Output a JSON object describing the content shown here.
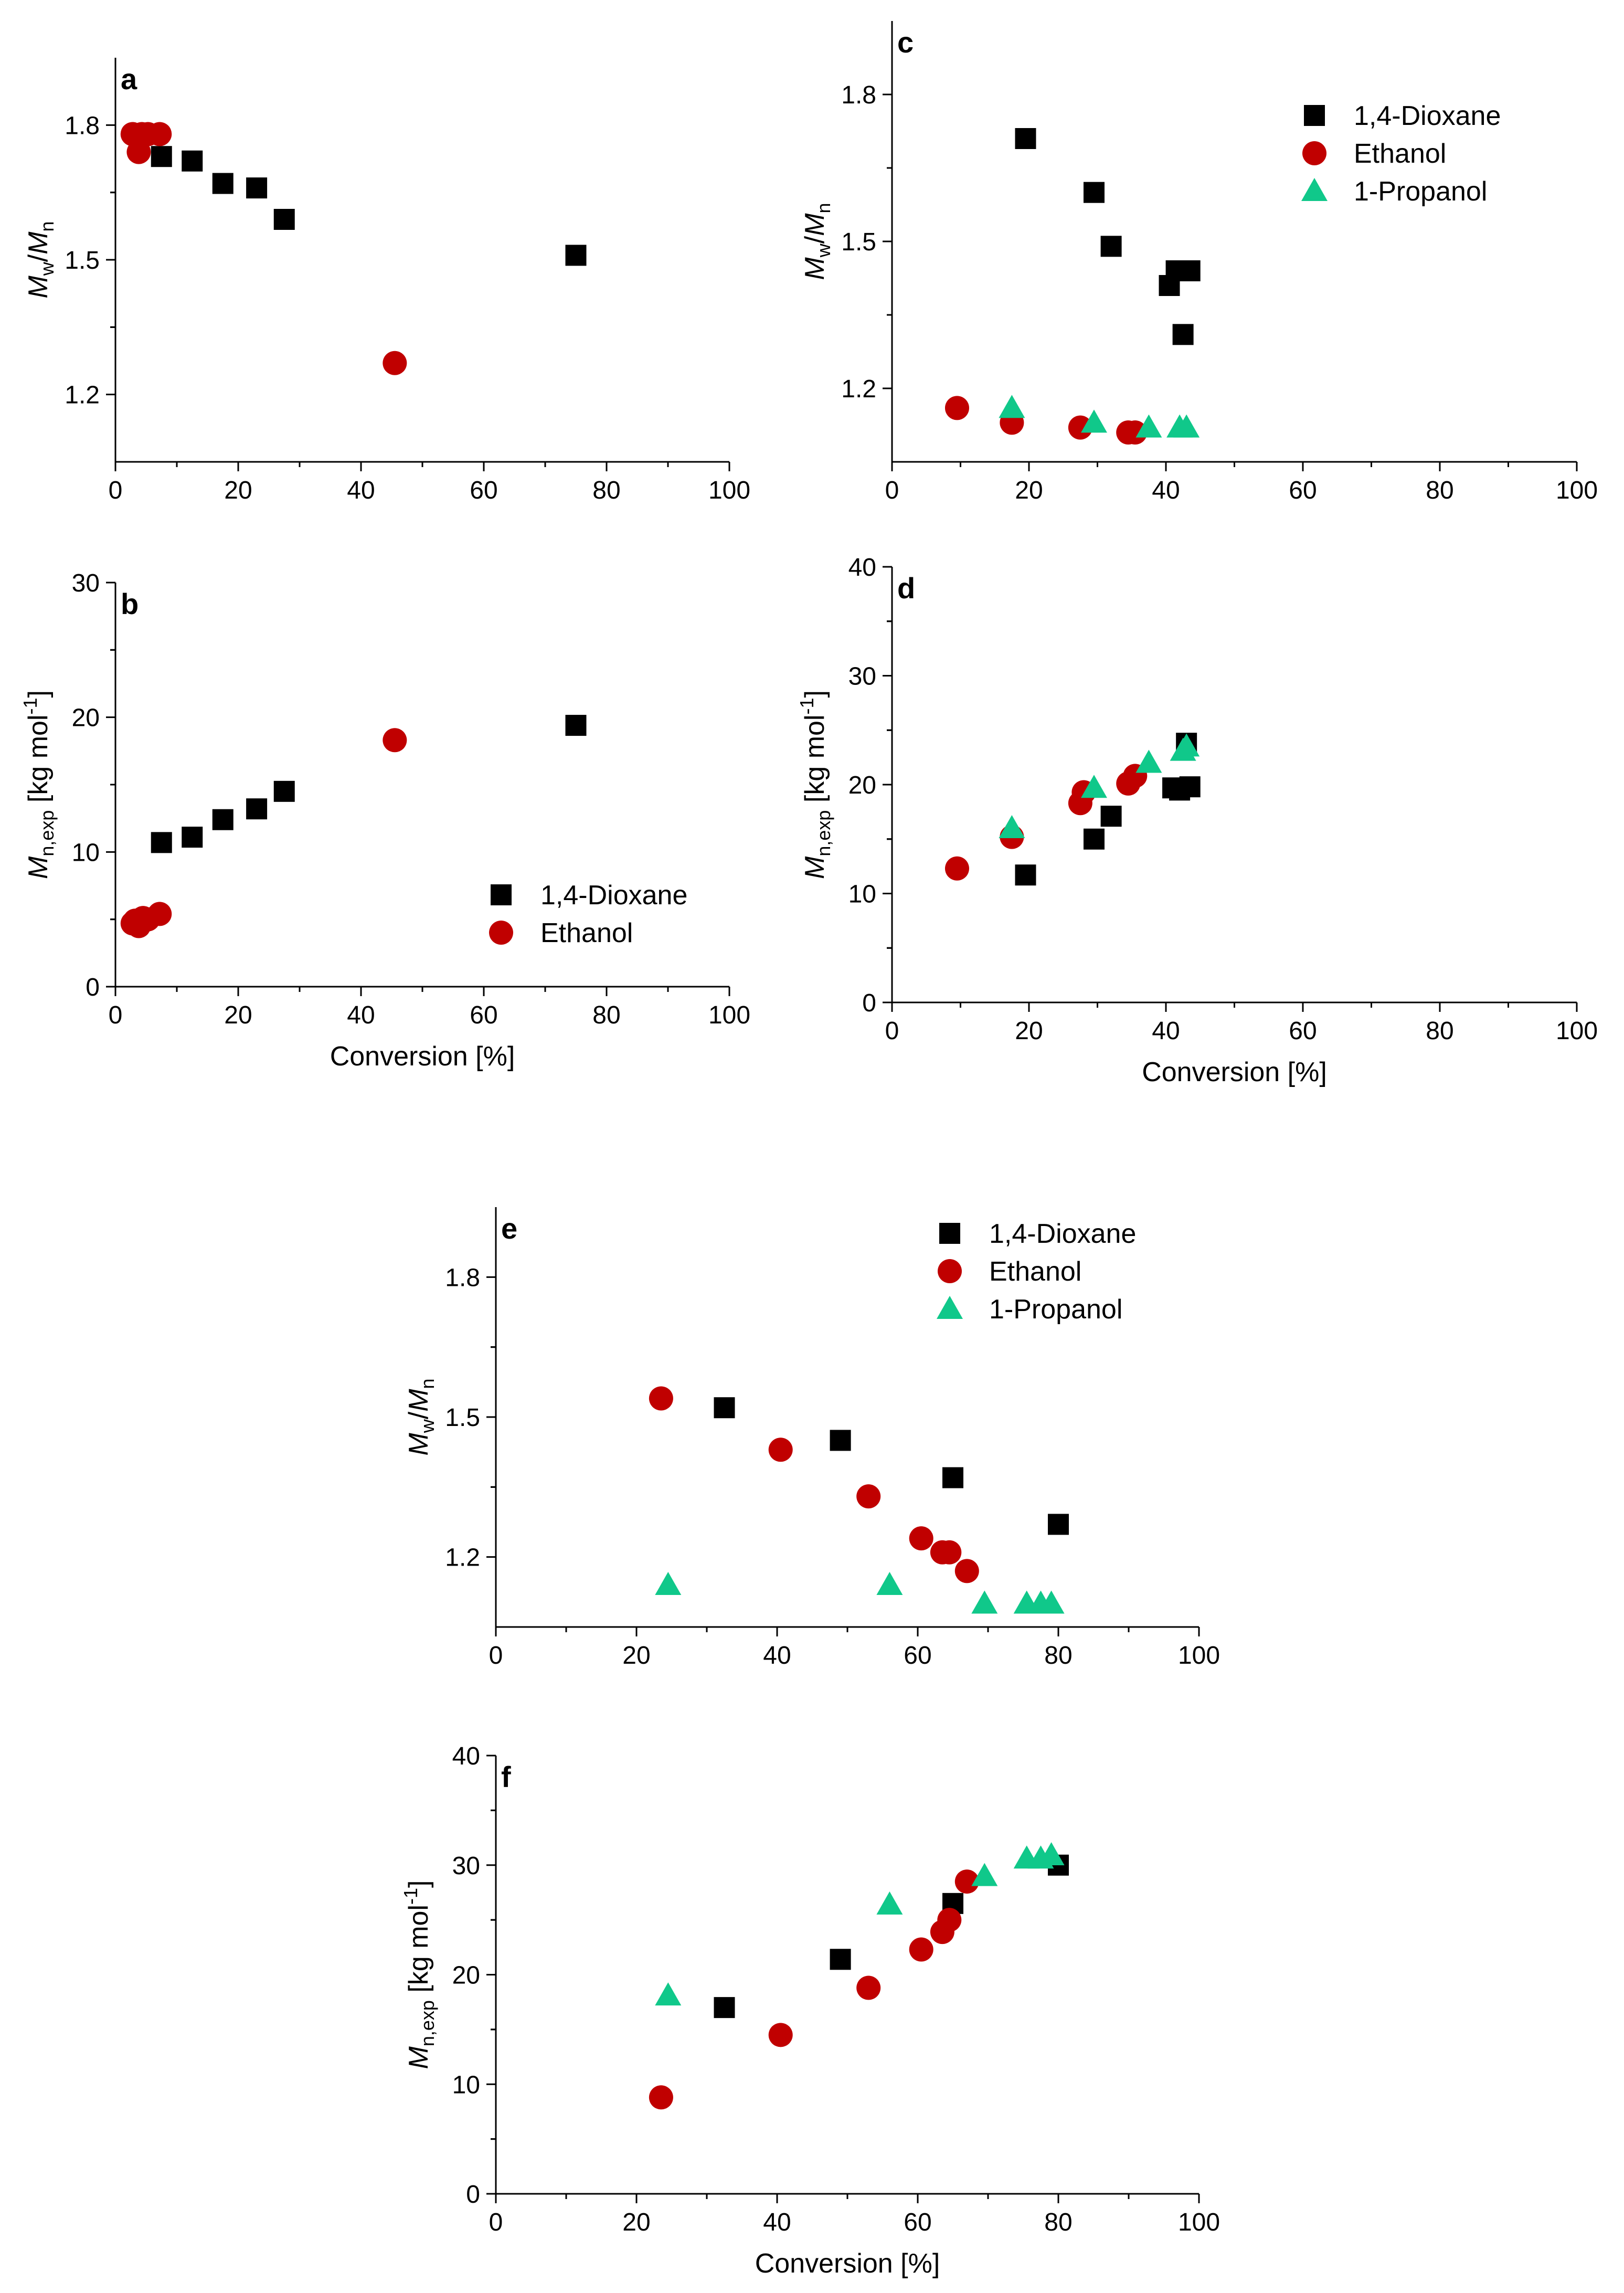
{
  "series_styles": {
    "dioxane": {
      "color": "#000000",
      "marker": "square-marker"
    },
    "ethanol": {
      "color": "#c00000",
      "marker": "circle-marker"
    },
    "propanol": {
      "color": "#10c88a",
      "marker": "triangle-marker"
    }
  },
  "chart_data": [
    {
      "type": "scatter",
      "panel": "a",
      "xlabel": "",
      "ylabel_main": "M",
      "ylabel_sub": "w",
      "ylabel_main2": "/M",
      "ylabel_sub2": "n",
      "ylabel_suffix": "",
      "xlim": [
        0,
        100
      ],
      "ylim": [
        1.05,
        1.95
      ],
      "xticks": [
        0,
        20,
        40,
        60,
        80,
        100
      ],
      "yticks": [
        1.2,
        1.5,
        1.8
      ],
      "ytick_labels": [
        "1.2",
        "1.5",
        "1.8"
      ],
      "legend": null,
      "series": [
        {
          "name": "1,4-Dioxane",
          "style": "dioxane",
          "x": [
            7.5,
            12.5,
            17.5,
            23,
            27.5,
            75
          ],
          "y": [
            1.73,
            1.72,
            1.67,
            1.66,
            1.59,
            1.51
          ]
        },
        {
          "name": "Ethanol",
          "style": "ethanol",
          "x": [
            2.8,
            3.8,
            4.3,
            5.3,
            7.2,
            45.5
          ],
          "y": [
            1.78,
            1.74,
            1.78,
            1.78,
            1.78,
            1.27
          ]
        }
      ]
    },
    {
      "type": "scatter",
      "panel": "b",
      "xlabel": "Conversion [%]",
      "ylabel_main": "M",
      "ylabel_sub": "n,exp",
      "ylabel_main2": "",
      "ylabel_sub2": "",
      "ylabel_suffix": " [kg mol",
      "ylabel_sup": "-1",
      "ylabel_end": "]",
      "xlim": [
        0,
        100
      ],
      "ylim": [
        0,
        30
      ],
      "xticks": [
        0,
        20,
        40,
        60,
        80,
        100
      ],
      "yticks": [
        0,
        10,
        20,
        30
      ],
      "ytick_labels": [
        "0",
        "10",
        "20",
        "30"
      ],
      "legend": "bottom-right",
      "series": [
        {
          "name": "1,4-Dioxane",
          "style": "dioxane",
          "x": [
            7.5,
            12.5,
            17.5,
            23,
            27.5,
            75
          ],
          "y": [
            10.7,
            11.1,
            12.4,
            13.2,
            14.5,
            19.4
          ]
        },
        {
          "name": "Ethanol",
          "style": "ethanol",
          "x": [
            2.8,
            3.2,
            3.8,
            4.5,
            5.3,
            7.2,
            45.5
          ],
          "y": [
            4.7,
            4.9,
            4.5,
            5.1,
            5.0,
            5.4,
            18.3
          ]
        }
      ]
    },
    {
      "type": "scatter",
      "panel": "c",
      "xlabel": "",
      "ylabel_main": "M",
      "ylabel_sub": "w",
      "ylabel_main2": "/M",
      "ylabel_sub2": "n",
      "ylabel_suffix": "",
      "xlim": [
        0,
        100
      ],
      "ylim": [
        1.05,
        1.95
      ],
      "xticks": [
        0,
        20,
        40,
        60,
        80,
        100
      ],
      "yticks": [
        1.2,
        1.5,
        1.8
      ],
      "ytick_labels": [
        "1.2",
        "1.5",
        "1.8"
      ],
      "legend": "top-right",
      "series": [
        {
          "name": "1,4-Dioxane",
          "style": "dioxane",
          "x": [
            19.5,
            29.5,
            32,
            40.5,
            41.5,
            42.5,
            43.5
          ],
          "y": [
            1.71,
            1.6,
            1.49,
            1.41,
            1.44,
            1.31,
            1.44
          ]
        },
        {
          "name": "Ethanol",
          "style": "ethanol",
          "x": [
            9.5,
            17.5,
            27.5,
            34.5,
            35.5
          ],
          "y": [
            1.16,
            1.13,
            1.12,
            1.11,
            1.11
          ]
        },
        {
          "name": "1-Propanol",
          "style": "propanol",
          "x": [
            17.5,
            29.5,
            37.5,
            42,
            43
          ],
          "y": [
            1.16,
            1.13,
            1.12,
            1.12,
            1.12
          ]
        }
      ]
    },
    {
      "type": "scatter",
      "panel": "d",
      "xlabel": "Conversion [%]",
      "ylabel_main": "M",
      "ylabel_sub": "n,exp",
      "ylabel_main2": "",
      "ylabel_sub2": "",
      "ylabel_suffix": " [kg mol",
      "ylabel_sup": "-1",
      "ylabel_end": "]",
      "xlim": [
        0,
        100
      ],
      "ylim": [
        0,
        40
      ],
      "xticks": [
        0,
        20,
        40,
        60,
        80,
        100
      ],
      "yticks": [
        0,
        10,
        20,
        30,
        40
      ],
      "ytick_labels": [
        "0",
        "10",
        "20",
        "30",
        "40"
      ],
      "legend": null,
      "series": [
        {
          "name": "1,4-Dioxane",
          "style": "dioxane",
          "x": [
            19.5,
            29.5,
            32,
            41,
            42,
            43,
            43.5
          ],
          "y": [
            11.7,
            15.0,
            17.1,
            19.7,
            19.5,
            23.8,
            19.8
          ]
        },
        {
          "name": "Ethanol",
          "style": "ethanol",
          "x": [
            9.5,
            17.5,
            27.5,
            28,
            34.5,
            35.5
          ],
          "y": [
            12.3,
            15.2,
            18.3,
            19.3,
            20.1,
            20.8
          ]
        },
        {
          "name": "1-Propanol",
          "style": "propanol",
          "x": [
            17.5,
            29.5,
            37.5,
            42.5,
            43
          ],
          "y": [
            16.0,
            19.7,
            22.0,
            23.1,
            23.5
          ]
        }
      ]
    },
    {
      "type": "scatter",
      "panel": "e",
      "xlabel": "",
      "ylabel_main": "M",
      "ylabel_sub": "w",
      "ylabel_main2": "/M",
      "ylabel_sub2": "n",
      "ylabel_suffix": "",
      "xlim": [
        0,
        100
      ],
      "ylim": [
        1.05,
        1.95
      ],
      "xticks": [
        0,
        20,
        40,
        60,
        80,
        100
      ],
      "yticks": [
        1.2,
        1.5,
        1.8
      ],
      "ytick_labels": [
        "1.2",
        "1.5",
        "1.8"
      ],
      "legend": "top-right",
      "series": [
        {
          "name": "1,4-Dioxane",
          "style": "dioxane",
          "x": [
            32.5,
            49,
            65,
            80
          ],
          "y": [
            1.52,
            1.45,
            1.37,
            1.27
          ]
        },
        {
          "name": "Ethanol",
          "style": "ethanol",
          "x": [
            23.5,
            40.5,
            53,
            60.5,
            63.5,
            64.5,
            67
          ],
          "y": [
            1.54,
            1.43,
            1.33,
            1.24,
            1.21,
            1.21,
            1.17
          ]
        },
        {
          "name": "1-Propanol",
          "style": "propanol",
          "x": [
            24.5,
            56,
            69.5,
            75.5,
            77.5,
            79
          ],
          "y": [
            1.14,
            1.14,
            1.1,
            1.1,
            1.1,
            1.1
          ]
        }
      ]
    },
    {
      "type": "scatter",
      "panel": "f",
      "xlabel": "Conversion [%]",
      "ylabel_main": "M",
      "ylabel_sub": "n,exp",
      "ylabel_main2": "",
      "ylabel_sub2": "",
      "ylabel_suffix": " [kg mol",
      "ylabel_sup": "-1",
      "ylabel_end": "]",
      "xlim": [
        0,
        100
      ],
      "ylim": [
        0,
        40
      ],
      "xticks": [
        0,
        20,
        40,
        60,
        80,
        100
      ],
      "yticks": [
        0,
        10,
        20,
        30,
        40
      ],
      "ytick_labels": [
        "0",
        "10",
        "20",
        "30",
        "40"
      ],
      "legend": null,
      "series": [
        {
          "name": "1,4-Dioxane",
          "style": "dioxane",
          "x": [
            32.5,
            49,
            65,
            80
          ],
          "y": [
            17.0,
            21.4,
            26.5,
            30.0
          ]
        },
        {
          "name": "Ethanol",
          "style": "ethanol",
          "x": [
            23.5,
            40.5,
            53,
            60.5,
            63.5,
            64.5,
            67
          ],
          "y": [
            8.8,
            14.5,
            18.8,
            22.3,
            23.9,
            25.0,
            28.5
          ]
        },
        {
          "name": "1-Propanol",
          "style": "propanol",
          "x": [
            24.5,
            56,
            69.5,
            75.5,
            77.5,
            79
          ],
          "y": [
            18.1,
            26.4,
            29.0,
            30.6,
            30.6,
            30.9
          ]
        }
      ]
    }
  ]
}
